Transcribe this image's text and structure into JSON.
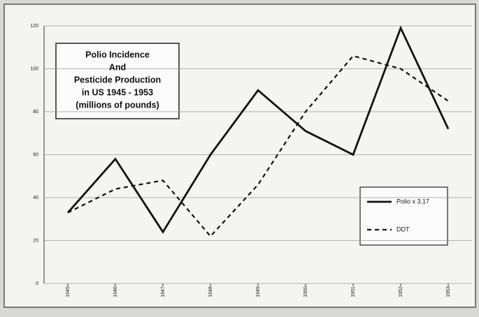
{
  "chart_data": {
    "type": "line",
    "title": [
      "Polio Incidence",
      "And",
      "Pesticide Production",
      "in US 1945 - 1953",
      "(millions of pounds)"
    ],
    "categories": [
      "1945",
      "1946",
      "1947",
      "1948",
      "1949",
      "1950",
      "1951",
      "1952",
      "1953"
    ],
    "series": [
      {
        "name": "Polio x 3.17",
        "color": "#111111",
        "dash": false,
        "values": [
          33,
          58,
          24,
          60,
          90,
          71,
          60,
          119,
          72
        ]
      },
      {
        "name": "DDT",
        "color": "#111111",
        "dash": true,
        "values": [
          33,
          44,
          48,
          22,
          46,
          80,
          106,
          100,
          85
        ]
      }
    ],
    "ylim": [
      0,
      120
    ],
    "yticks": [
      0,
      20,
      40,
      60,
      80,
      100,
      120
    ],
    "grid": true,
    "legend": "lower right"
  }
}
